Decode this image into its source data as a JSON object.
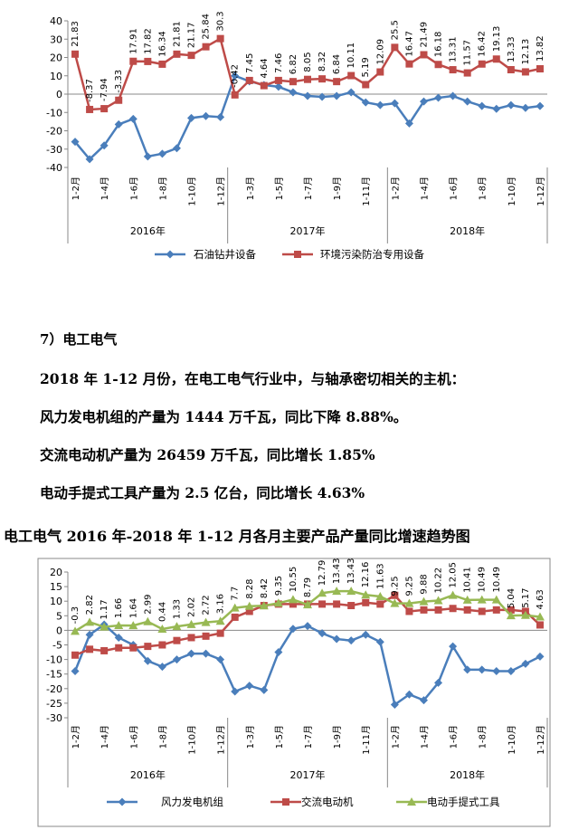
{
  "colors": {
    "blue": "#4a7ebb",
    "red": "#be4b48",
    "green": "#98b954"
  },
  "section_title": "7）电工电气",
  "paragraphs": [
    "2018 年 1-12 月份，在电工电气行业中，与轴承密切相关的主机：",
    "风力发电机组的产量为 1444 万千瓦，同比下降 8.88%。",
    "交流电动机产量为 26459 万千瓦，同比增长 1.85%",
    "电动手提式工具产量为 2.5 亿台，同比增长 4.63%"
  ],
  "caption": "电工电气 2016 年-2018 年 1-12 月各月主要产品产量同比增速趋势图",
  "chart_data": [
    {
      "type": "line",
      "x": [
        "1-2月",
        "1-3月",
        "1-4月",
        "1-5月",
        "1-6月",
        "1-7月",
        "1-8月",
        "1-9月",
        "1-10月",
        "1-11月",
        "1-12月",
        "1-2月",
        "1-3月",
        "1-4月",
        "1-5月",
        "1-6月",
        "1-7月",
        "1-8月",
        "1-9月",
        "1-10月",
        "1-11月",
        "1-12月",
        "1-2月",
        "1-3月",
        "1-4月",
        "1-5月",
        "1-6月",
        "1-7月",
        "1-8月",
        "1-9月",
        "1-10月",
        "1-11月",
        "1-12月"
      ],
      "x_tick_labels": [
        "1-2月",
        "1-4月",
        "1-6月",
        "1-8月",
        "1-10月",
        "1-12月",
        "1-3月",
        "1-5月",
        "1-7月",
        "1-9月",
        "1-11月",
        "1-2月",
        "1-4月",
        "1-6月",
        "1-8月",
        "1-10月",
        "1-12月"
      ],
      "year_groups": [
        "2016年",
        "2017年",
        "2018年"
      ],
      "ylim": [
        -40,
        40
      ],
      "yticks": [
        -40,
        -30,
        -20,
        -10,
        0,
        10,
        20,
        30,
        40
      ],
      "legend_position": "bottom",
      "series": [
        {
          "name": "石油钻井设备",
          "color": "blue",
          "marker": "diamond",
          "values": [
            -26,
            -35.5,
            -28,
            -16.5,
            -13.5,
            -34,
            -32.5,
            -29.5,
            -13,
            -12,
            -12.5,
            10,
            7,
            5,
            4,
            1,
            -1,
            -1.5,
            -1,
            1,
            -4.5,
            -6,
            -5,
            -16,
            -4,
            -2,
            -1,
            -4,
            -6.5,
            -8,
            -6,
            -7.5,
            -6.5
          ],
          "labels": []
        },
        {
          "name": "环境污染防治专用设备",
          "color": "red",
          "marker": "square",
          "values": [
            21.83,
            -8.37,
            -7.94,
            -3.33,
            17.91,
            17.82,
            16.34,
            21.81,
            21.17,
            25.84,
            30.3,
            -0.42,
            7.45,
            4.64,
            7.46,
            6.82,
            8.05,
            8.32,
            6.84,
            10.11,
            5.19,
            12.09,
            25.5,
            16.47,
            21.49,
            16.18,
            13.31,
            11.57,
            16.42,
            19.13,
            13.33,
            12.13,
            13.82
          ],
          "labels": [
            "21.83",
            "-8.37",
            "-7.94",
            "-3.33",
            "17.91",
            "17.82",
            "16.34",
            "21.81",
            "21.17",
            "25.84",
            "30.3",
            "-0.42",
            "7.45",
            "4.64",
            "7.46",
            "6.82",
            "8.05",
            "8.32",
            "6.84",
            "10.11",
            "5.19",
            "12.09",
            "25.5",
            "16.47",
            "21.49",
            "16.18",
            "13.31",
            "11.57",
            "16.42",
            "19.13",
            "13.33",
            "12.13",
            "13.82"
          ]
        }
      ]
    },
    {
      "type": "line",
      "x": [
        "1-2月",
        "1-3月",
        "1-4月",
        "1-5月",
        "1-6月",
        "1-7月",
        "1-8月",
        "1-9月",
        "1-10月",
        "1-11月",
        "1-12月",
        "1-2月",
        "1-3月",
        "1-4月",
        "1-5月",
        "1-6月",
        "1-7月",
        "1-8月",
        "1-9月",
        "1-10月",
        "1-11月",
        "1-12月",
        "1-2月",
        "1-3月",
        "1-4月",
        "1-5月",
        "1-6月",
        "1-7月",
        "1-8月",
        "1-9月",
        "1-10月",
        "1-11月",
        "1-12月"
      ],
      "x_tick_labels": [
        "1-2月",
        "1-4月",
        "1-6月",
        "1-8月",
        "1-10月",
        "1-12月",
        "1-3月",
        "1-5月",
        "1-7月",
        "1-9月",
        "1-11月",
        "1-2月",
        "1-4月",
        "1-6月",
        "1-8月",
        "1-10月",
        "1-12月"
      ],
      "year_groups": [
        "2016年",
        "2017年",
        "2018年"
      ],
      "ylim": [
        -30,
        20
      ],
      "yticks": [
        -30,
        -25,
        -20,
        -15,
        -10,
        -5,
        0,
        5,
        10,
        15,
        20
      ],
      "legend_position": "bottom",
      "series": [
        {
          "name": "风力发电机组",
          "color": "blue",
          "marker": "diamond",
          "values": [
            -14,
            -1.5,
            2,
            -2.5,
            -5,
            -10.5,
            -12.5,
            -10,
            -8,
            -8,
            -10,
            -21,
            -19,
            -20.5,
            -7.5,
            0.5,
            1.5,
            -1,
            -3,
            -3.5,
            -1.5,
            -4,
            -25.5,
            -22,
            -24,
            -18,
            -5.5,
            -13.5,
            -13.5,
            -14,
            -14,
            -11.5,
            -9
          ],
          "labels": []
        },
        {
          "name": "交流电动机",
          "color": "red",
          "marker": "square",
          "values": [
            -8.5,
            -6.5,
            -7,
            -6,
            -6,
            -5.5,
            -5,
            -3.5,
            -2.5,
            -2,
            -1,
            4.5,
            6.5,
            8.5,
            9,
            9,
            9,
            9,
            9,
            8.5,
            9.5,
            9,
            12,
            6.5,
            7,
            7,
            7.5,
            7,
            6.5,
            7,
            7,
            6.5,
            1.85
          ],
          "labels": []
        },
        {
          "name": "电动手提式工具",
          "color": "green",
          "marker": "triangle",
          "values": [
            -0.3,
            2.82,
            1.17,
            1.66,
            1.64,
            2.99,
            0.44,
            1.33,
            2.02,
            2.72,
            3.16,
            7.7,
            8.28,
            8.42,
            9.35,
            10.55,
            8.79,
            12.79,
            13.43,
            13.43,
            12.16,
            11.63,
            9.25,
            9.25,
            9.88,
            10.22,
            12.05,
            10.41,
            10.49,
            10.49,
            5.04,
            5.17,
            4.63
          ],
          "labels": [
            "-0.3",
            "2.82",
            "1.17",
            "1.66",
            "1.64",
            "2.99",
            "0.44",
            "1.33",
            "2.02",
            "2.72",
            "3.16",
            "7.7",
            "8.28",
            "8.42",
            "9.35",
            "10.55",
            "8.79",
            "12.79",
            "13.43",
            "13.43",
            "12.16",
            "11.63",
            "9.25",
            "9.25",
            "9.88",
            "10.22",
            "12.05",
            "10.41",
            "10.49",
            "10.49",
            "5.04",
            "5.17",
            "4.63"
          ]
        }
      ]
    }
  ]
}
